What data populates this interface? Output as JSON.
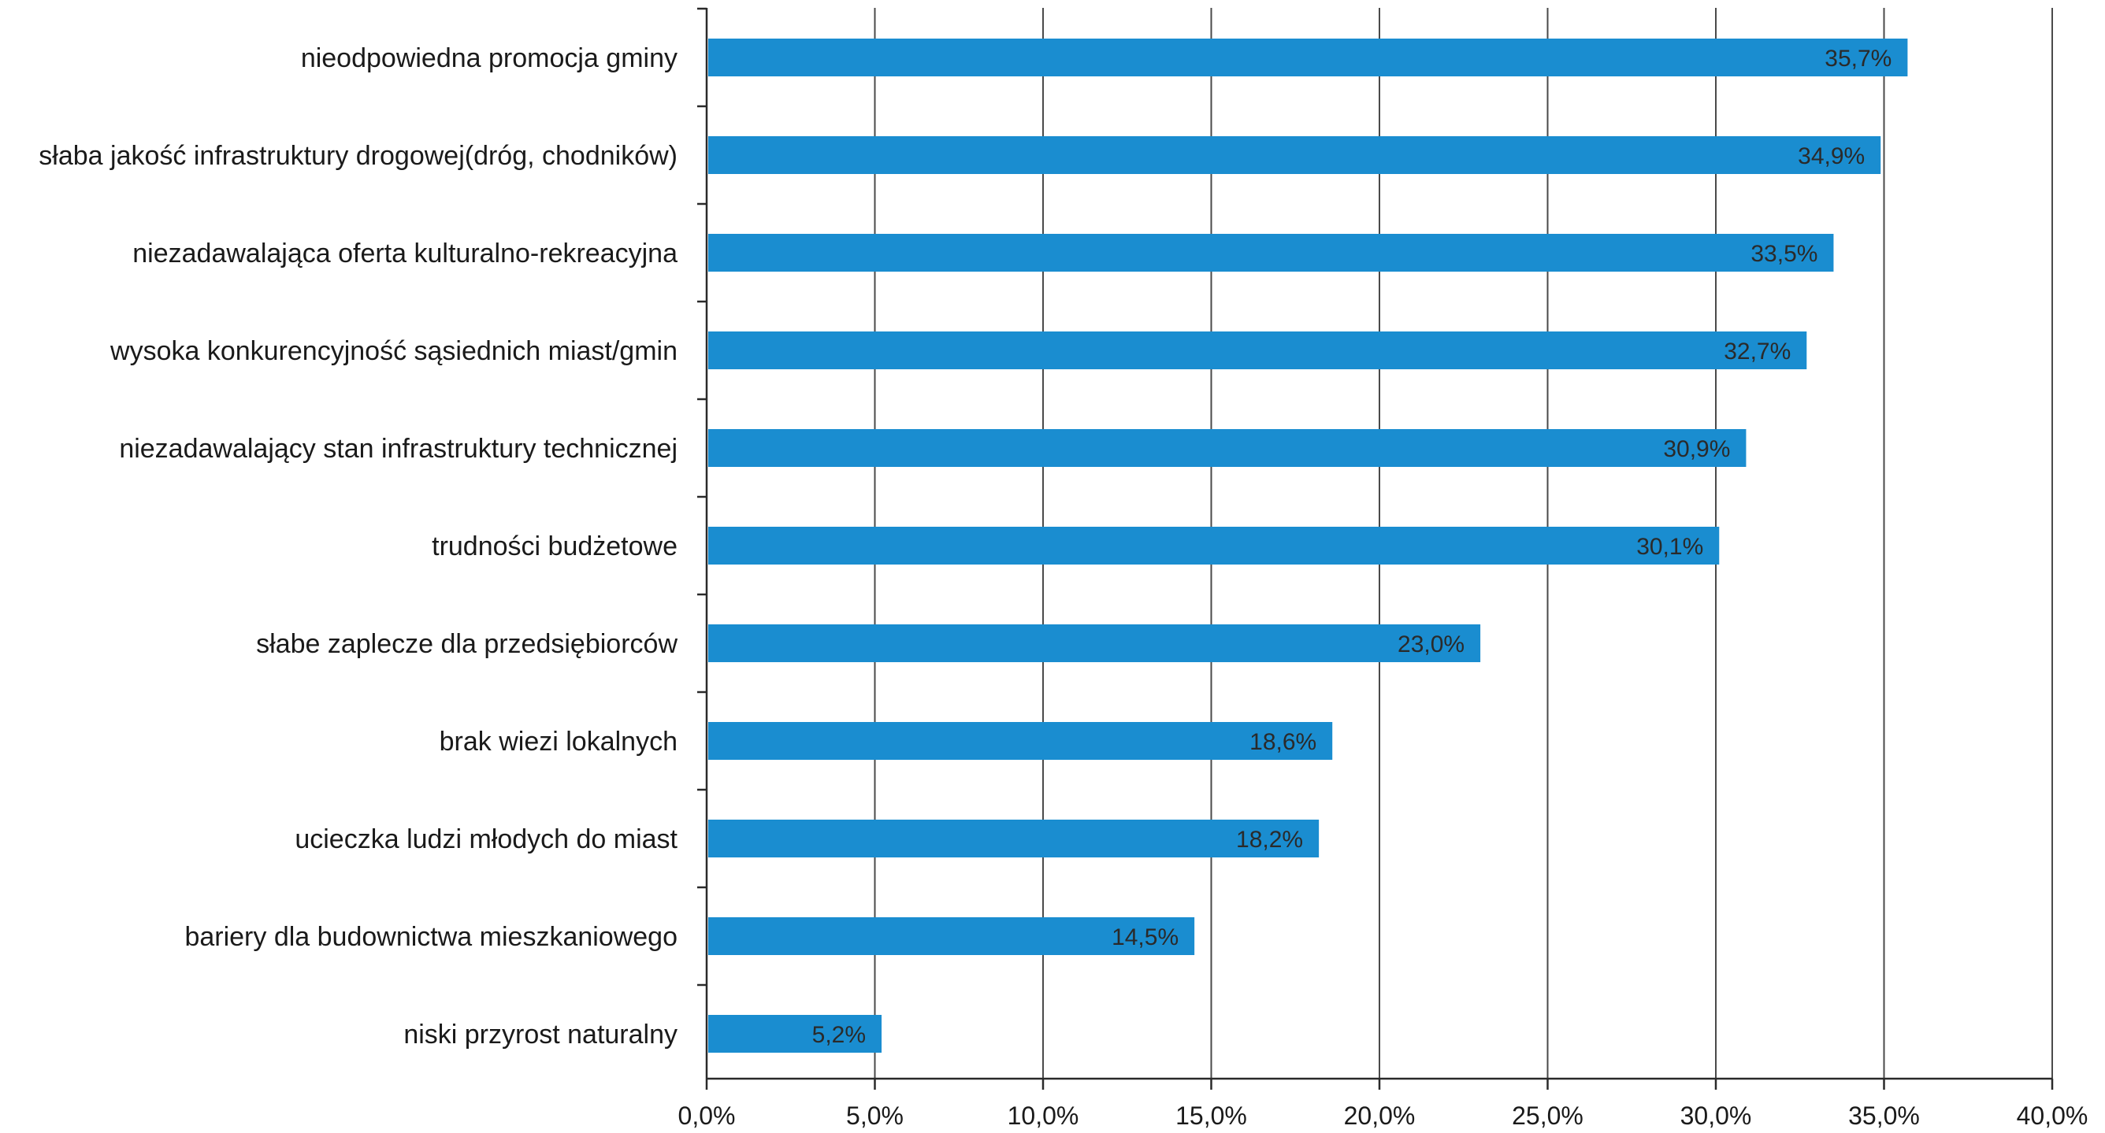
{
  "chart_data": {
    "type": "bar",
    "orientation": "horizontal",
    "categories": [
      "nieodpowiedna promocja gminy",
      "słaba jakość infrastruktury drogowej(dróg, chodników)",
      "niezadawalająca oferta kulturalno-rekreacyjna",
      "wysoka konkurencyjność sąsiednich miast/gmin",
      "niezadawalający stan infrastruktury technicznej",
      "trudności budżetowe",
      "słabe zaplecze dla przedsiębiorców",
      "brak wiezi lokalnych",
      "ucieczka ludzi młodych do miast",
      "bariery dla budownictwa mieszkaniowego",
      "niski przyrost naturalny"
    ],
    "values": [
      35.7,
      34.9,
      33.5,
      32.7,
      30.9,
      30.1,
      23.0,
      18.6,
      18.2,
      14.5,
      5.2
    ],
    "data_labels": [
      "35,7%",
      "34,9%",
      "33,5%",
      "32,7%",
      "30,9%",
      "30,1%",
      "23,0%",
      "18,6%",
      "18,2%",
      "14,5%",
      "5,2%"
    ],
    "xlim": [
      0,
      40
    ],
    "x_ticks": [
      0,
      5,
      10,
      15,
      20,
      25,
      30,
      35,
      40
    ],
    "x_tick_labels": [
      "0,0%",
      "5,0%",
      "10,0%",
      "15,0%",
      "20,0%",
      "25,0%",
      "30,0%",
      "35,0%",
      "40,0%"
    ],
    "grid": true,
    "legend": "none",
    "bar_color": "#1a8dd0",
    "title": "",
    "xlabel": "",
    "ylabel": ""
  }
}
